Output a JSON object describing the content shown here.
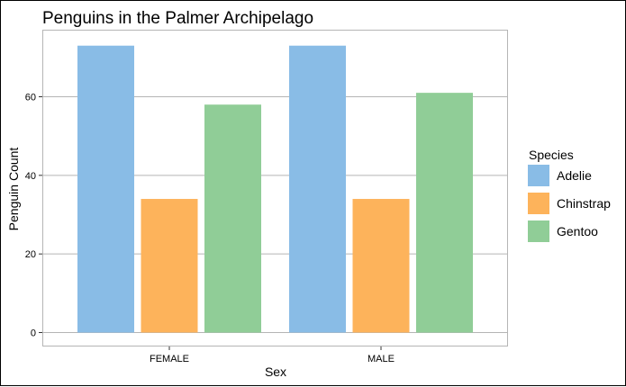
{
  "chart_data": {
    "type": "bar",
    "title": "Penguins in the Palmer Archipelago",
    "xlabel": "Sex",
    "ylabel": "Penguin Count",
    "categories": [
      "FEMALE",
      "MALE"
    ],
    "series": [
      {
        "name": "Adelie",
        "color": "#89bce6",
        "values": [
          73,
          73
        ]
      },
      {
        "name": "Chinstrap",
        "color": "#fdb35b",
        "values": [
          34,
          34
        ]
      },
      {
        "name": "Gentoo",
        "color": "#90cd97",
        "values": [
          58,
          61
        ]
      }
    ],
    "ylim": [
      0,
      78
    ],
    "yticks": [
      0,
      20,
      40,
      60
    ],
    "grid": true,
    "legend": {
      "title": "Species",
      "position": "right"
    }
  }
}
